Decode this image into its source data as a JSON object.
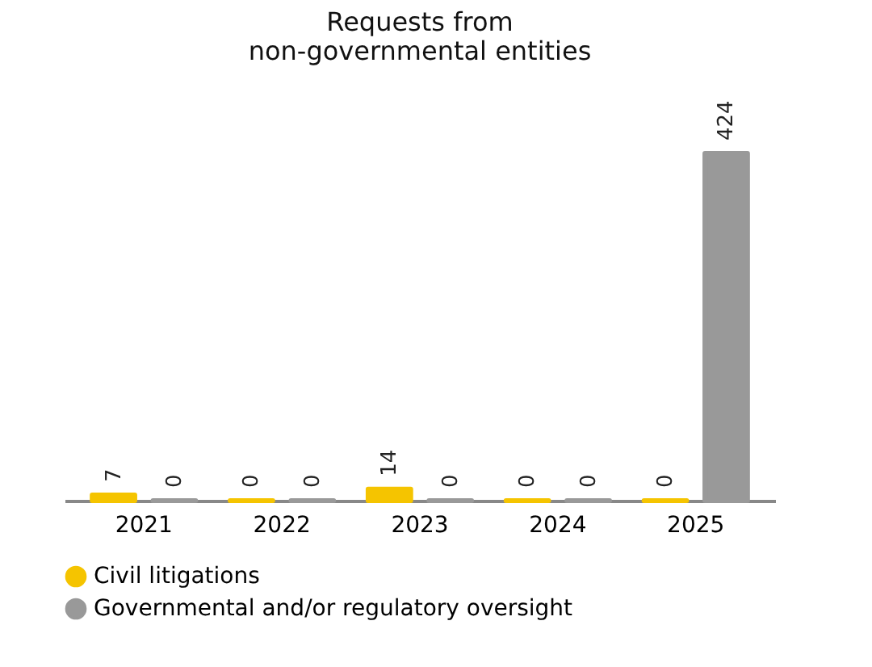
{
  "chart_data": {
    "type": "bar",
    "title": "Requests from\nnon-governmental entities",
    "categories": [
      "2021",
      "2022",
      "2023",
      "2024",
      "2025"
    ],
    "series": [
      {
        "name": "Civil litigations",
        "color": "#f5c400",
        "values": [
          7,
          0,
          14,
          0,
          0
        ]
      },
      {
        "name": "Governmental and/or regulatory oversight",
        "color": "#999999",
        "values": [
          0,
          0,
          0,
          0,
          424
        ]
      }
    ],
    "tick_labels": "x",
    "data_labels": true,
    "legend": "bottom"
  }
}
